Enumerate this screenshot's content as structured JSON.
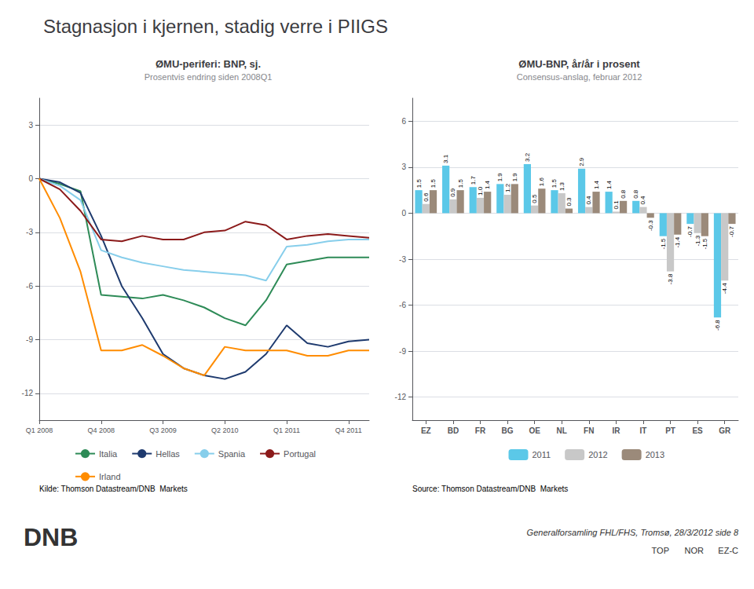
{
  "title": "Stagnasjon i kjernen, stadig verre i PIIGS",
  "annotations": [
    "Generalforsamling FHL/FHS, Tromsø, 28/3/2012 side 8",
    "TOP",
    "NOR",
    "EZ-C",
    "DNB"
  ],
  "chart_data": [
    {
      "type": "line",
      "title": "ØMU-periferi: BNP, sj.",
      "subtitle": "Prosentvis endring siden 2008Q1",
      "annotations": [
        "Kilde: Thomson Datastream/DNB  Markets"
      ],
      "categories": [
        "Q1 2008",
        null,
        null,
        "Q4 2008",
        null,
        null,
        "Q3 2009",
        null,
        null,
        "Q2 2010",
        null,
        null,
        "Q1 2011",
        null,
        null,
        "Q4 2011",
        null
      ],
      "series": [
        {
          "name": "Italia",
          "color": "#2e8b57",
          "values": [
            0.0,
            -0.3,
            -0.7,
            -6.5,
            -6.6,
            -6.7,
            -6.5,
            -6.8,
            -7.2,
            -7.8,
            -8.2,
            -6.8,
            -4.8,
            -4.6,
            -4.4,
            -4.4,
            -4.4
          ]
        },
        {
          "name": "Hellas",
          "color": "#1e3a6e",
          "values": [
            0.0,
            -0.2,
            -0.8,
            -3.2,
            -6.0,
            -7.8,
            -9.8,
            -10.6,
            -11.0,
            -11.2,
            -10.8,
            -9.8,
            -8.2,
            -9.2,
            -9.4,
            -9.1,
            -9.0
          ]
        },
        {
          "name": "Spania",
          "color": "#87ceeb",
          "values": [
            0.0,
            -0.4,
            -1.2,
            -4.0,
            -4.4,
            -4.7,
            -4.9,
            -5.1,
            -5.2,
            -5.3,
            -5.4,
            -5.7,
            -3.8,
            -3.7,
            -3.5,
            -3.4,
            -3.4
          ]
        },
        {
          "name": "Portugal",
          "color": "#8b1a1a",
          "values": [
            0.0,
            -0.6,
            -1.8,
            -3.4,
            -3.5,
            -3.2,
            -3.4,
            -3.4,
            -3.0,
            -2.9,
            -2.4,
            -2.6,
            -3.4,
            -3.2,
            -3.1,
            -3.2,
            -3.3
          ]
        },
        {
          "name": "Irland",
          "color": "#ff8c00",
          "values": [
            0.0,
            -2.2,
            -5.2,
            -9.6,
            -9.6,
            -9.3,
            -9.9,
            -10.6,
            -11.0,
            -9.4,
            -9.6,
            -9.6,
            -9.6,
            -9.9,
            -9.9,
            -9.6,
            -9.6
          ]
        }
      ],
      "ylim": [
        -13.5,
        4.5
      ],
      "yticks": [
        3,
        0,
        -3,
        -6,
        -9,
        -12
      ],
      "grid": true,
      "legend": "bottom"
    },
    {
      "type": "bar",
      "title": "ØMU-BNP, år/år i prosent",
      "subtitle": "Consensus-anslag, februar 2012",
      "annotations": [
        "Source: Thomson Datastream/DNB  Markets"
      ],
      "categories": [
        "EZ",
        "BD",
        "FR",
        "BG",
        "OE",
        "NL",
        "FN",
        "IR",
        "IT",
        "PT",
        "ES",
        "GR"
      ],
      "series": [
        {
          "name": "2011",
          "color": "#5bc8e8",
          "values": [
            1.5,
            3.1,
            1.7,
            1.9,
            3.2,
            1.5,
            2.9,
            1.4,
            0.8,
            -1.5,
            -0.7,
            -6.8
          ],
          "value_labels": [
            "1.5",
            "3.1",
            "1.7",
            "1.9",
            "3.2",
            "1.5",
            "2.9",
            "1.4",
            "0.8",
            "-1.5",
            "-0.7",
            "-6.8"
          ]
        },
        {
          "name": "2012",
          "color": "#c8c8c8",
          "values": [
            0.6,
            0.9,
            1.0,
            1.2,
            0.5,
            1.3,
            0.4,
            0.1,
            0.4,
            -3.8,
            -1.3,
            -4.4
          ],
          "value_labels": [
            "0.6",
            "0.9",
            "1.0",
            "1.2",
            "0.5",
            "1.3",
            "0.4",
            "0.1",
            "0.4",
            "-3.8",
            "-1.3",
            "-4.4"
          ]
        },
        {
          "name": "2013",
          "color": "#9b8a7a",
          "values": [
            1.5,
            1.5,
            1.4,
            1.9,
            1.6,
            0.3,
            1.4,
            0.8,
            -0.3,
            -1.4,
            -1.5,
            -0.7
          ],
          "value_labels": [
            "1.5",
            "1.5",
            "1.4",
            "1.9",
            "1.6",
            "0.3",
            "1.4",
            "0.8",
            "-0.3",
            "-1.4",
            "-1.5",
            "-0.7"
          ]
        }
      ],
      "ylim": [
        -13.5,
        7.5
      ],
      "yticks": [
        6,
        3,
        0,
        -3,
        -6,
        -9,
        -12
      ],
      "grid": true,
      "legend": "bottom",
      "data_labels": true
    }
  ]
}
